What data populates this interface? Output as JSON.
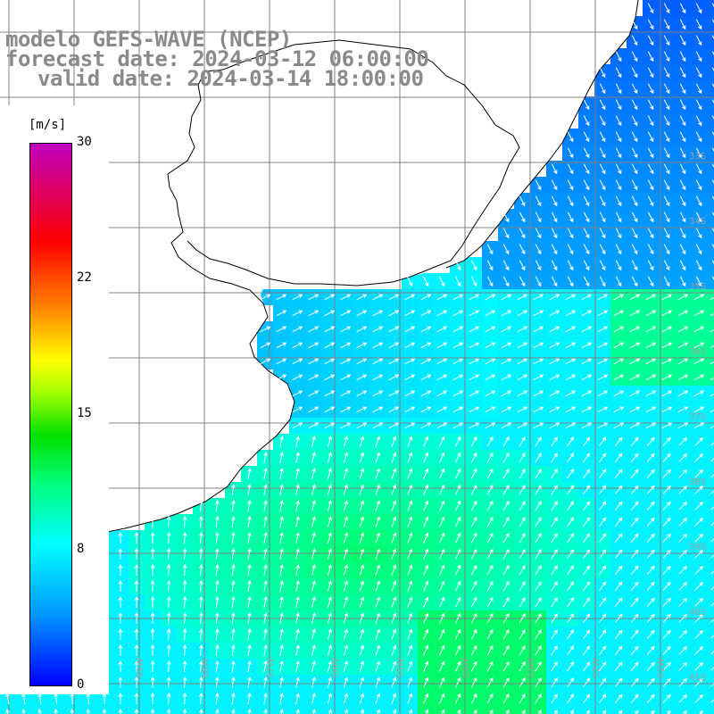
{
  "title": {
    "line1": "modelo GEFS-WAVE (NCEP)",
    "line2": "forecast date: 2024-03-12 06:00:00",
    "line3": "valid date: 2024-03-14 18:00:00"
  },
  "colorbar": {
    "units": "[m/s]",
    "ticks": [
      "30",
      "22",
      "15",
      "8",
      "0"
    ],
    "tick_values": [
      30,
      22,
      15,
      8,
      0
    ],
    "range": [
      0,
      30
    ],
    "stops": [
      "#0000ff",
      "#0096ff",
      "#00ffff",
      "#00ff80",
      "#00e000",
      "#a0ff00",
      "#ffff00",
      "#ff8000",
      "#ff0000",
      "#c000c0"
    ]
  },
  "map": {
    "land_color": "#ffffff",
    "grid_color": "#808080",
    "coast_color": "#000000",
    "arrow_color": "#ffffff",
    "lon_labels": [
      "61W",
      "60W",
      "59W",
      "58W",
      "57W",
      "56W",
      "55W",
      "54W",
      "53W",
      "52W",
      "51W"
    ],
    "lat_labels": [
      "33S",
      "34S",
      "35S",
      "36S",
      "37S",
      "38S",
      "39S",
      "40S",
      "41S"
    ]
  }
}
